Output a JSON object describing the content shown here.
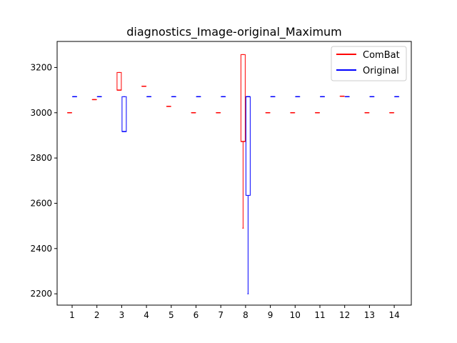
{
  "chart_data": {
    "type": "box",
    "title": "diagnostics_Image-original_Maximum",
    "xlabel": "",
    "ylabel": "",
    "categories": [
      "1",
      "2",
      "3",
      "4",
      "5",
      "6",
      "7",
      "8",
      "9",
      "10",
      "11",
      "12",
      "13",
      "14"
    ],
    "ylim": [
      2150,
      3315
    ],
    "yticks": [
      2200,
      2400,
      2600,
      2800,
      3000,
      3200
    ],
    "legend": {
      "position": "top-right",
      "entries": [
        "ComBat",
        "Original"
      ]
    },
    "colors": {
      "ComBat": "#ff0000",
      "Original": "#0000ff"
    },
    "series": [
      {
        "name": "ComBat",
        "boxes": [
          {
            "cat": "1",
            "min": 3000,
            "q1": 3000,
            "median": 3000,
            "q3": 3000,
            "max": 3000
          },
          {
            "cat": "2",
            "min": 3058,
            "q1": 3058,
            "median": 3058,
            "q3": 3058,
            "max": 3058
          },
          {
            "cat": "3",
            "min": 3100,
            "q1": 3100,
            "median": 3100,
            "q3": 3178,
            "max": 3178
          },
          {
            "cat": "4",
            "min": 3117,
            "q1": 3117,
            "median": 3117,
            "q3": 3117,
            "max": 3117
          },
          {
            "cat": "5",
            "min": 3028,
            "q1": 3028,
            "median": 3028,
            "q3": 3028,
            "max": 3028
          },
          {
            "cat": "6",
            "min": 3000,
            "q1": 3000,
            "median": 3000,
            "q3": 3000,
            "max": 3000
          },
          {
            "cat": "7",
            "min": 3000,
            "q1": 3000,
            "median": 3000,
            "q3": 3000,
            "max": 3000
          },
          {
            "cat": "8",
            "min": 2490,
            "q1": 2873,
            "median": 2873,
            "q3": 3257,
            "max": 3257
          },
          {
            "cat": "9",
            "min": 3000,
            "q1": 3000,
            "median": 3000,
            "q3": 3000,
            "max": 3000
          },
          {
            "cat": "10",
            "min": 3000,
            "q1": 3000,
            "median": 3000,
            "q3": 3000,
            "max": 3000
          },
          {
            "cat": "11",
            "min": 3000,
            "q1": 3000,
            "median": 3000,
            "q3": 3000,
            "max": 3000
          },
          {
            "cat": "12",
            "min": 3073,
            "q1": 3073,
            "median": 3073,
            "q3": 3073,
            "max": 3073
          },
          {
            "cat": "13",
            "min": 3000,
            "q1": 3000,
            "median": 3000,
            "q3": 3000,
            "max": 3000
          },
          {
            "cat": "14",
            "min": 3000,
            "q1": 3000,
            "median": 3000,
            "q3": 3000,
            "max": 3000
          }
        ]
      },
      {
        "name": "Original",
        "boxes": [
          {
            "cat": "1",
            "min": 3071,
            "q1": 3071,
            "median": 3071,
            "q3": 3071,
            "max": 3071
          },
          {
            "cat": "2",
            "min": 3071,
            "q1": 3071,
            "median": 3071,
            "q3": 3071,
            "max": 3071
          },
          {
            "cat": "3",
            "min": 2917,
            "q1": 2917,
            "median": 2917,
            "q3": 3071,
            "max": 3071
          },
          {
            "cat": "4",
            "min": 3071,
            "q1": 3071,
            "median": 3071,
            "q3": 3071,
            "max": 3071
          },
          {
            "cat": "5",
            "min": 3071,
            "q1": 3071,
            "median": 3071,
            "q3": 3071,
            "max": 3071
          },
          {
            "cat": "6",
            "min": 3071,
            "q1": 3071,
            "median": 3071,
            "q3": 3071,
            "max": 3071
          },
          {
            "cat": "7",
            "min": 3071,
            "q1": 3071,
            "median": 3071,
            "q3": 3071,
            "max": 3071
          },
          {
            "cat": "8",
            "min": 2200,
            "q1": 2635,
            "median": 3071,
            "q3": 3071,
            "max": 3071
          },
          {
            "cat": "9",
            "min": 3071,
            "q1": 3071,
            "median": 3071,
            "q3": 3071,
            "max": 3071
          },
          {
            "cat": "10",
            "min": 3071,
            "q1": 3071,
            "median": 3071,
            "q3": 3071,
            "max": 3071
          },
          {
            "cat": "11",
            "min": 3071,
            "q1": 3071,
            "median": 3071,
            "q3": 3071,
            "max": 3071
          },
          {
            "cat": "12",
            "min": 3071,
            "q1": 3071,
            "median": 3071,
            "q3": 3071,
            "max": 3071
          },
          {
            "cat": "13",
            "min": 3071,
            "q1": 3071,
            "median": 3071,
            "q3": 3071,
            "max": 3071
          },
          {
            "cat": "14",
            "min": 3071,
            "q1": 3071,
            "median": 3071,
            "q3": 3071,
            "max": 3071
          }
        ]
      }
    ]
  }
}
